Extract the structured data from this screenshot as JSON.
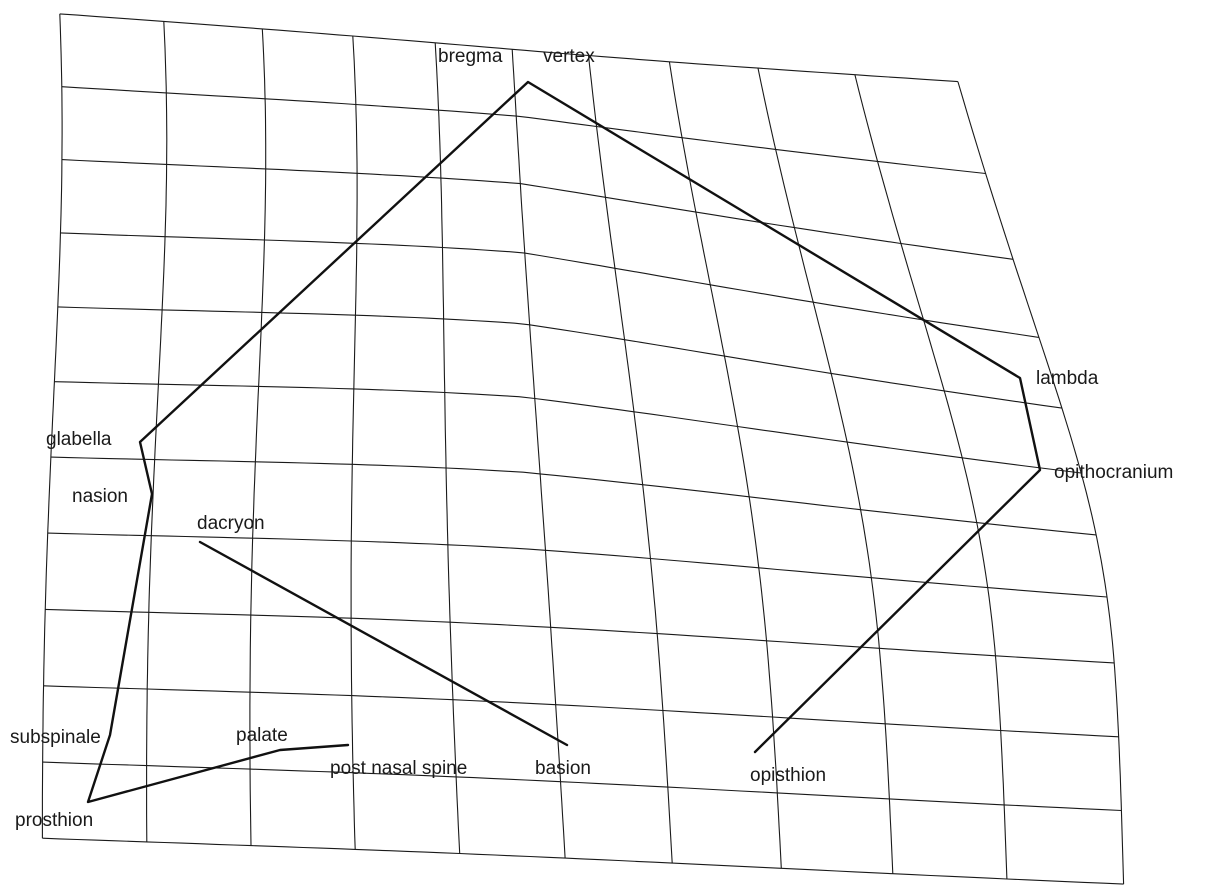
{
  "landmarks": {
    "bregma": "bregma",
    "vertex": "vertex",
    "lambda": "lambda",
    "opithocranium": "opithocranium",
    "glabella": "glabella",
    "nasion": "nasion",
    "dacryon": "dacryon",
    "subspinale": "subspinale",
    "palate": "palate",
    "post_nasal_spine": "post nasal spine",
    "basion": "basion",
    "opisthion": "opisthion",
    "prosthion": "prosthion"
  },
  "colors": {
    "line": "#111111",
    "grid": "#1a1a1a",
    "background": "#ffffff"
  }
}
